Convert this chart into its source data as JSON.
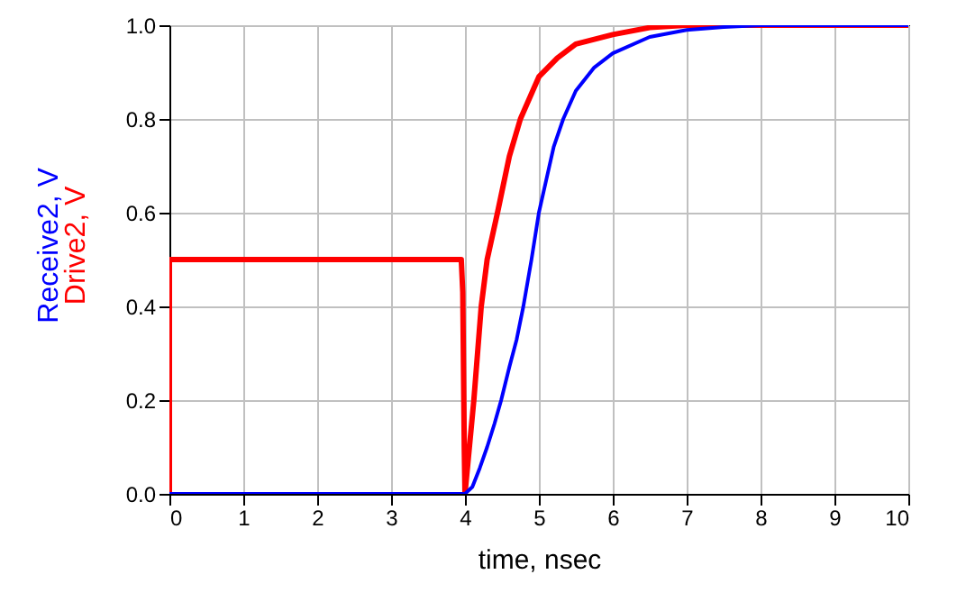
{
  "chart_data": {
    "type": "line",
    "xlabel": "time, nsec",
    "series": [
      {
        "name": "Receive2, V",
        "color": "#0000ff",
        "x": [
          0,
          4,
          4.1,
          4.2,
          4.3,
          4.4,
          4.49,
          4.6,
          4.7,
          4.79,
          4.9,
          5.0,
          5.1,
          5.2,
          5.33,
          5.5,
          5.75,
          6,
          6.5,
          7,
          7.5,
          8,
          10
        ],
        "values": [
          0,
          0,
          0.015,
          0.055,
          0.1,
          0.15,
          0.2,
          0.27,
          0.33,
          0.4,
          0.5,
          0.6,
          0.67,
          0.74,
          0.8,
          0.86,
          0.91,
          0.94,
          0.975,
          0.99,
          0.996,
          1,
          1
        ]
      },
      {
        "name": "Drive2, V",
        "color": "#ff0000",
        "x": [
          0,
          0,
          3.95,
          3.97,
          3.99,
          4.0,
          4.06,
          4.12,
          4.22,
          4.3,
          4.44,
          4.6,
          4.75,
          5,
          5.25,
          5.5,
          6,
          6.5,
          7,
          7.5,
          10
        ],
        "values": [
          0,
          0.5,
          0.5,
          0.43,
          0.1,
          0,
          0.1,
          0.2,
          0.4,
          0.5,
          0.6,
          0.72,
          0.8,
          0.89,
          0.93,
          0.96,
          0.98,
          0.995,
          1,
          1,
          1
        ]
      }
    ],
    "xlim": [
      0,
      10
    ],
    "xticks": [
      0,
      1,
      2,
      3,
      4,
      5,
      6,
      7,
      8,
      9,
      10
    ],
    "ylim": [
      0,
      1
    ],
    "yticks": [
      {
        "value": 0,
        "label": "0.0"
      },
      0.2,
      0.4,
      0.6,
      0.8,
      {
        "value": 1,
        "label": "1.0"
      }
    ],
    "grid": true,
    "marker": "none",
    "line_style": "solid"
  }
}
